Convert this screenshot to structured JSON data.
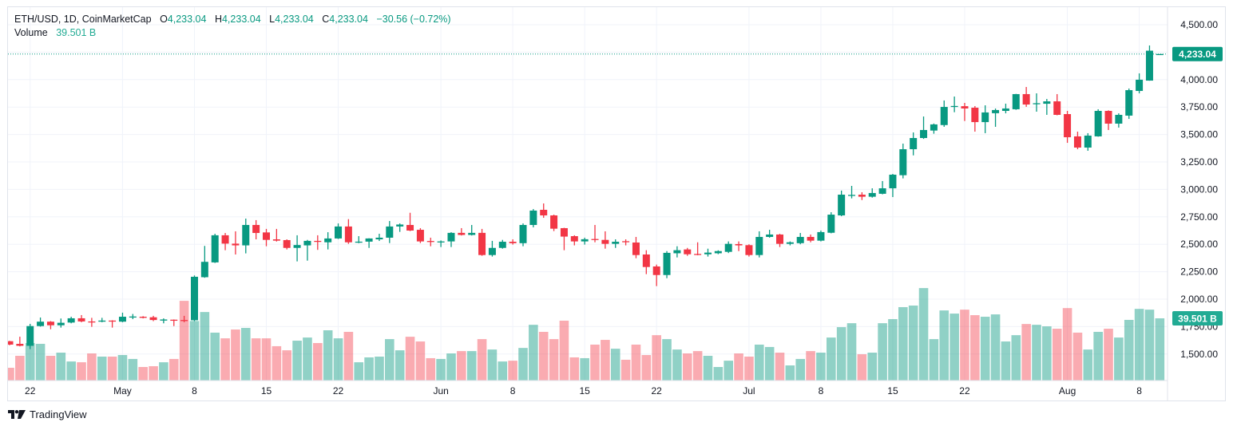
{
  "legend": {
    "symbol": "ETH/USD, 1D, CoinMarketCap",
    "o_label": "O",
    "o_value": "4,233.04",
    "h_label": "H",
    "h_value": "4,233.04",
    "l_label": "L",
    "l_value": "4,233.04",
    "c_label": "C",
    "c_value": "4,233.04",
    "change": "−30.56 (−0.72%)",
    "volume_label": "Volume",
    "volume_value": "39.501 B"
  },
  "brand": {
    "name": "TradingView",
    "icon": "tradingview-logo-icon"
  },
  "colors": {
    "up": "#089981",
    "down": "#f23645",
    "grid": "#f0f3fa",
    "axis_text": "#131722"
  },
  "chart_data": {
    "type": "candlestick",
    "title": "ETH/USD, 1D, CoinMarketCap",
    "ylim": [
      1300,
      4620
    ],
    "y_ticks": [
      "4,500.00",
      "4,000.00",
      "3,750.00",
      "3,500.00",
      "3,250.00",
      "3,000.00",
      "2,750.00",
      "2,500.00",
      "2,250.00",
      "2,000.00",
      "1,750.00",
      "1,500.00"
    ],
    "y_tick_values": [
      4500,
      4000,
      3750,
      3500,
      3250,
      3000,
      2750,
      2500,
      2250,
      2000,
      1750,
      1500
    ],
    "x_ticks": [
      {
        "label": "22",
        "index": 2
      },
      {
        "label": "May",
        "index": 11
      },
      {
        "label": "8",
        "index": 18
      },
      {
        "label": "15",
        "index": 25
      },
      {
        "label": "22",
        "index": 32
      },
      {
        "label": "Jun",
        "index": 42
      },
      {
        "label": "8",
        "index": 49
      },
      {
        "label": "15",
        "index": 56
      },
      {
        "label": "22",
        "index": 63
      },
      {
        "label": "Jul",
        "index": 72
      },
      {
        "label": "8",
        "index": 79
      },
      {
        "label": "15",
        "index": 86
      },
      {
        "label": "22",
        "index": 93
      },
      {
        "label": "Aug",
        "index": 103
      },
      {
        "label": "8",
        "index": 110
      }
    ],
    "last_price_label": "4,233.04",
    "last_price": 4233.04,
    "volume_label": "39.501 B",
    "volume_unit": "B",
    "candles_ohlcv": [
      [
        1617,
        1620,
        1580,
        1586,
        8.1
      ],
      [
        1593,
        1658,
        1570,
        1575,
        15.7
      ],
      [
        1575,
        1775,
        1545,
        1755,
        23.8
      ],
      [
        1755,
        1833,
        1750,
        1795,
        23.3
      ],
      [
        1795,
        1800,
        1726,
        1762,
        15.7
      ],
      [
        1762,
        1824,
        1741,
        1785,
        17.7
      ],
      [
        1787,
        1840,
        1780,
        1826,
        12.1
      ],
      [
        1826,
        1855,
        1790,
        1797,
        11.6
      ],
      [
        1797,
        1830,
        1748,
        1795,
        17.2
      ],
      [
        1795,
        1830,
        1790,
        1805,
        15.2
      ],
      [
        1805,
        1808,
        1741,
        1800,
        15.2
      ],
      [
        1795,
        1877,
        1790,
        1840,
        16.2
      ],
      [
        1838,
        1865,
        1818,
        1842,
        13.7
      ],
      [
        1840,
        1845,
        1825,
        1830,
        8.6
      ],
      [
        1835,
        1848,
        1800,
        1810,
        9.1
      ],
      [
        1805,
        1825,
        1780,
        1815,
        11.6
      ],
      [
        1813,
        1815,
        1755,
        1810,
        13.7
      ],
      [
        1810,
        1848,
        1790,
        1808,
        50.6
      ],
      [
        1808,
        2216,
        1800,
        2204,
        37.8
      ],
      [
        2200,
        2485,
        2195,
        2340,
        43.5
      ],
      [
        2335,
        2596,
        2330,
        2582,
        30.4
      ],
      [
        2582,
        2603,
        2446,
        2506,
        26.8
      ],
      [
        2506,
        2618,
        2407,
        2490,
        32.4
      ],
      [
        2490,
        2734,
        2417,
        2676,
        33.4
      ],
      [
        2676,
        2720,
        2545,
        2603,
        26.8
      ],
      [
        2608,
        2640,
        2482,
        2540,
        26.8
      ],
      [
        2545,
        2640,
        2525,
        2533,
        21.8
      ],
      [
        2538,
        2545,
        2453,
        2467,
        19.2
      ],
      [
        2467,
        2582,
        2344,
        2493,
        25.3
      ],
      [
        2490,
        2540,
        2351,
        2531,
        27.3
      ],
      [
        2531,
        2582,
        2449,
        2528,
        23.8
      ],
      [
        2518,
        2610,
        2453,
        2553,
        31.9
      ],
      [
        2553,
        2690,
        2548,
        2662,
        26.8
      ],
      [
        2662,
        2729,
        2504,
        2518,
        30.9
      ],
      [
        2518,
        2574,
        2510,
        2524,
        11.6
      ],
      [
        2524,
        2555,
        2467,
        2553,
        14.7
      ],
      [
        2545,
        2596,
        2530,
        2560,
        15.2
      ],
      [
        2560,
        2712,
        2511,
        2662,
        26.3
      ],
      [
        2662,
        2690,
        2613,
        2680,
        19.2
      ],
      [
        2676,
        2787,
        2620,
        2625,
        27.8
      ],
      [
        2632,
        2647,
        2511,
        2526,
        24.8
      ],
      [
        2530,
        2560,
        2482,
        2525,
        14.2
      ],
      [
        2520,
        2535,
        2475,
        2526,
        13.7
      ],
      [
        2526,
        2610,
        2475,
        2604,
        17.2
      ],
      [
        2604,
        2647,
        2580,
        2585,
        18.7
      ],
      [
        2585,
        2676,
        2580,
        2604,
        18.7
      ],
      [
        2604,
        2640,
        2395,
        2402,
        26.3
      ],
      [
        2402,
        2531,
        2388,
        2467,
        19.7
      ],
      [
        2467,
        2540,
        2460,
        2523,
        12.1
      ],
      [
        2523,
        2545,
        2497,
        2510,
        12.6
      ],
      [
        2510,
        2690,
        2482,
        2676,
        20.7
      ],
      [
        2676,
        2821,
        2654,
        2807,
        35.4
      ],
      [
        2814,
        2872,
        2741,
        2763,
        30.9
      ],
      [
        2763,
        2770,
        2620,
        2642,
        26.3
      ],
      [
        2647,
        2650,
        2446,
        2570,
        38.0
      ],
      [
        2574,
        2582,
        2490,
        2526,
        14.7
      ],
      [
        2526,
        2560,
        2497,
        2546,
        14.2
      ],
      [
        2548,
        2676,
        2518,
        2540,
        22.8
      ],
      [
        2540,
        2618,
        2460,
        2504,
        25.8
      ],
      [
        2504,
        2545,
        2467,
        2523,
        20.2
      ],
      [
        2528,
        2545,
        2490,
        2523,
        13.2
      ],
      [
        2516,
        2567,
        2373,
        2402,
        22.8
      ],
      [
        2407,
        2446,
        2228,
        2293,
        16.2
      ],
      [
        2298,
        2315,
        2119,
        2220,
        28.8
      ],
      [
        2220,
        2438,
        2191,
        2422,
        26.3
      ],
      [
        2418,
        2482,
        2380,
        2446,
        19.7
      ],
      [
        2453,
        2467,
        2395,
        2409,
        17.2
      ],
      [
        2412,
        2518,
        2400,
        2409,
        18.7
      ],
      [
        2409,
        2460,
        2388,
        2424,
        15.7
      ],
      [
        2418,
        2445,
        2410,
        2438,
        8.6
      ],
      [
        2431,
        2526,
        2420,
        2504,
        12.6
      ],
      [
        2502,
        2526,
        2438,
        2490,
        17.2
      ],
      [
        2492,
        2500,
        2388,
        2402,
        15.2
      ],
      [
        2402,
        2618,
        2380,
        2567,
        22.8
      ],
      [
        2567,
        2632,
        2560,
        2589,
        21.3
      ],
      [
        2589,
        2595,
        2475,
        2504,
        17.7
      ],
      [
        2504,
        2526,
        2490,
        2518,
        9.6
      ],
      [
        2510,
        2603,
        2500,
        2567,
        13.7
      ],
      [
        2567,
        2589,
        2518,
        2533,
        18.7
      ],
      [
        2533,
        2625,
        2526,
        2611,
        17.7
      ],
      [
        2605,
        2792,
        2600,
        2770,
        27.3
      ],
      [
        2763,
        2989,
        2756,
        2952,
        33.9
      ],
      [
        2945,
        3032,
        2918,
        2950,
        36.4
      ],
      [
        2952,
        2974,
        2903,
        2933,
        16.7
      ],
      [
        2933,
        3010,
        2925,
        2967,
        17.7
      ],
      [
        2960,
        3076,
        2955,
        3010,
        36.4
      ],
      [
        3010,
        3141,
        2930,
        3134,
        39.0
      ],
      [
        3129,
        3417,
        3100,
        3366,
        46.6
      ],
      [
        3366,
        3519,
        3310,
        3468,
        47.6
      ],
      [
        3468,
        3664,
        3460,
        3541,
        58.7
      ],
      [
        3536,
        3600,
        3507,
        3592,
        26.3
      ],
      [
        3586,
        3810,
        3570,
        3751,
        44.5
      ],
      [
        3751,
        3846,
        3703,
        3760,
        42.5
      ],
      [
        3758,
        3788,
        3623,
        3737,
        45.0
      ],
      [
        3744,
        3759,
        3526,
        3613,
        41.5
      ],
      [
        3613,
        3766,
        3512,
        3701,
        40.5
      ],
      [
        3694,
        3737,
        3570,
        3723,
        42.0
      ],
      [
        3715,
        3781,
        3693,
        3737,
        24.8
      ],
      [
        3730,
        3870,
        3725,
        3868,
        28.8
      ],
      [
        3868,
        3933,
        3752,
        3773,
        35.9
      ],
      [
        3780,
        3875,
        3708,
        3785,
        35.4
      ],
      [
        3780,
        3824,
        3679,
        3802,
        34.4
      ],
      [
        3802,
        3868,
        3675,
        3679,
        32.9
      ],
      [
        3686,
        3715,
        3424,
        3475,
        46.0
      ],
      [
        3483,
        3526,
        3366,
        3381,
        30.4
      ],
      [
        3381,
        3512,
        3352,
        3490,
        19.7
      ],
      [
        3483,
        3730,
        3480,
        3715,
        30.9
      ],
      [
        3715,
        3720,
        3541,
        3599,
        32.9
      ],
      [
        3599,
        3693,
        3563,
        3679,
        27.3
      ],
      [
        3672,
        3919,
        3642,
        3904,
        38.5
      ],
      [
        3897,
        4057,
        3875,
        3999,
        45.5
      ],
      [
        3991,
        4311,
        3990,
        4263.6,
        45.0
      ],
      [
        4233.04,
        4233.04,
        4233.04,
        4233.04,
        39.501
      ]
    ]
  }
}
